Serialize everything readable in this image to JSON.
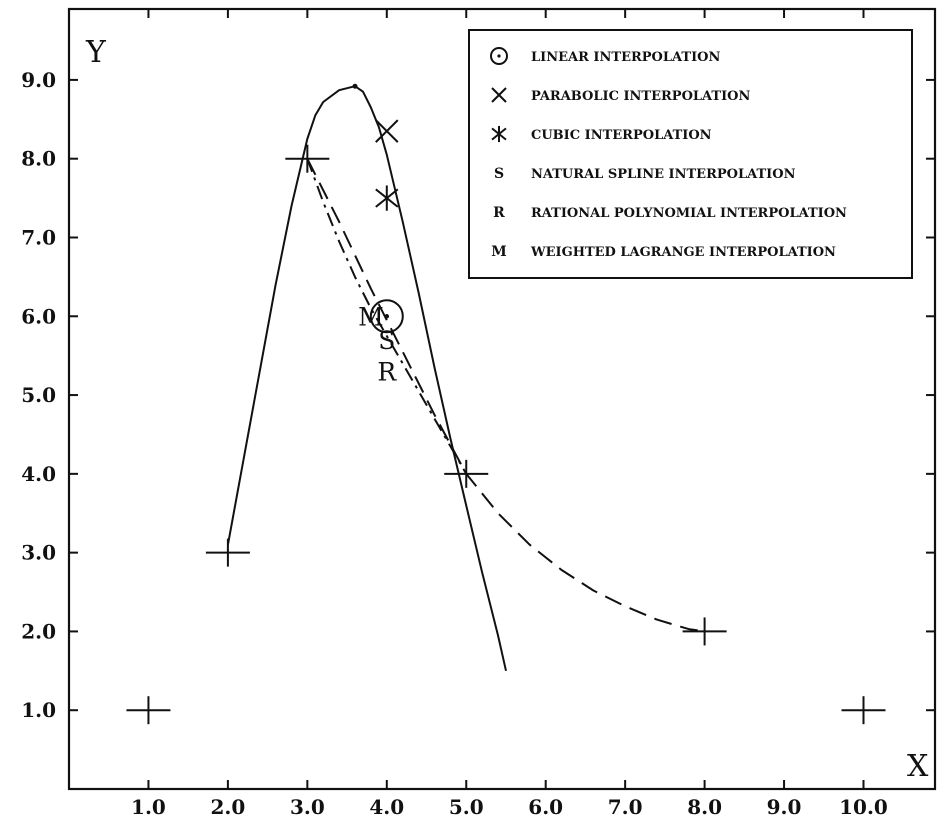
{
  "chart_data": {
    "type": "line",
    "xlabel": "X",
    "ylabel": "Y",
    "xlim": [
      0,
      10.9
    ],
    "ylim": [
      0,
      9.9
    ],
    "x_ticks": [
      1.0,
      2.0,
      3.0,
      4.0,
      5.0,
      6.0,
      7.0,
      8.0,
      9.0,
      10.0
    ],
    "y_ticks": [
      1.0,
      2.0,
      3.0,
      4.0,
      5.0,
      6.0,
      7.0,
      8.0,
      9.0
    ],
    "x_tick_labels": [
      "1.0",
      "2.0",
      "3.0",
      "4.0",
      "5.0",
      "6.0",
      "7.0",
      "8.0",
      "9.0",
      "10.0"
    ],
    "y_tick_labels": [
      "1.0",
      "2.0",
      "3.0",
      "4.0",
      "5.0",
      "6.0",
      "7.0",
      "8.0",
      "9.0"
    ],
    "grid": false,
    "legend_position": "top-right",
    "legend": [
      {
        "symbol": "circle-dot",
        "label": "LINEAR INTERPOLATION"
      },
      {
        "symbol": "x",
        "label": "PARABOLIC INTERPOLATION"
      },
      {
        "symbol": "asterisk",
        "label": "CUBIC INTERPOLATION"
      },
      {
        "symbol": "S",
        "label": "NATURAL SPLINE INTERPOLATION"
      },
      {
        "symbol": "R",
        "label": "RATIONAL POLYNOMIAL INTERPOLATION"
      },
      {
        "symbol": "M",
        "label": "WEIGHTED LAGRANGE INTERPOLATION"
      }
    ],
    "data_points": [
      {
        "x": 1.0,
        "y": 1.0
      },
      {
        "x": 2.0,
        "y": 3.0
      },
      {
        "x": 3.0,
        "y": 8.0
      },
      {
        "x": 5.0,
        "y": 4.0
      },
      {
        "x": 8.0,
        "y": 2.0
      },
      {
        "x": 10.0,
        "y": 1.0
      }
    ],
    "series": [
      {
        "style": "solid",
        "x": [
          2.0,
          2.2,
          2.4,
          2.6,
          2.8,
          3.0,
          3.1,
          3.2,
          3.4,
          3.6,
          3.7,
          3.8,
          3.9,
          4.0,
          4.2,
          4.4,
          4.6,
          4.8,
          5.0,
          5.2,
          5.4,
          5.5
        ],
        "y": [
          3.1,
          4.2,
          5.3,
          6.4,
          7.4,
          8.25,
          8.55,
          8.72,
          8.87,
          8.92,
          8.85,
          8.65,
          8.4,
          8.05,
          7.2,
          6.3,
          5.35,
          4.45,
          3.6,
          2.75,
          1.95,
          1.5
        ]
      },
      {
        "style": "dash-dot",
        "x": [
          3.0,
          3.2,
          3.4,
          3.6,
          3.8,
          4.0,
          4.2,
          4.4,
          4.6,
          4.8,
          5.0
        ],
        "y": [
          8.0,
          7.45,
          6.95,
          6.5,
          6.1,
          5.75,
          5.4,
          5.05,
          4.7,
          4.35,
          4.0
        ]
      },
      {
        "style": "dashed",
        "x": [
          3.0,
          3.4,
          3.8,
          4.2,
          4.6,
          5.0,
          5.4,
          5.8,
          6.2,
          6.6,
          7.0,
          7.4,
          7.8,
          8.0
        ],
        "y": [
          8.0,
          7.2,
          6.35,
          5.55,
          4.75,
          4.0,
          3.5,
          3.1,
          2.78,
          2.52,
          2.32,
          2.15,
          2.03,
          2.0
        ]
      }
    ],
    "interpolated_points": [
      {
        "method": "linear",
        "symbol": "circle-dot",
        "x": 4.0,
        "y": 6.0
      },
      {
        "method": "parabolic",
        "symbol": "x",
        "x": 4.0,
        "y": 8.35
      },
      {
        "method": "cubic",
        "symbol": "asterisk",
        "x": 4.0,
        "y": 7.5
      },
      {
        "method": "natural spline",
        "symbol": "S",
        "x": 4.0,
        "y": 5.7
      },
      {
        "method": "rational polynomial",
        "symbol": "R",
        "x": 4.0,
        "y": 5.3
      },
      {
        "method": "weighted lagrange",
        "symbol": "M",
        "x": 3.8,
        "y": 6.0
      }
    ]
  }
}
